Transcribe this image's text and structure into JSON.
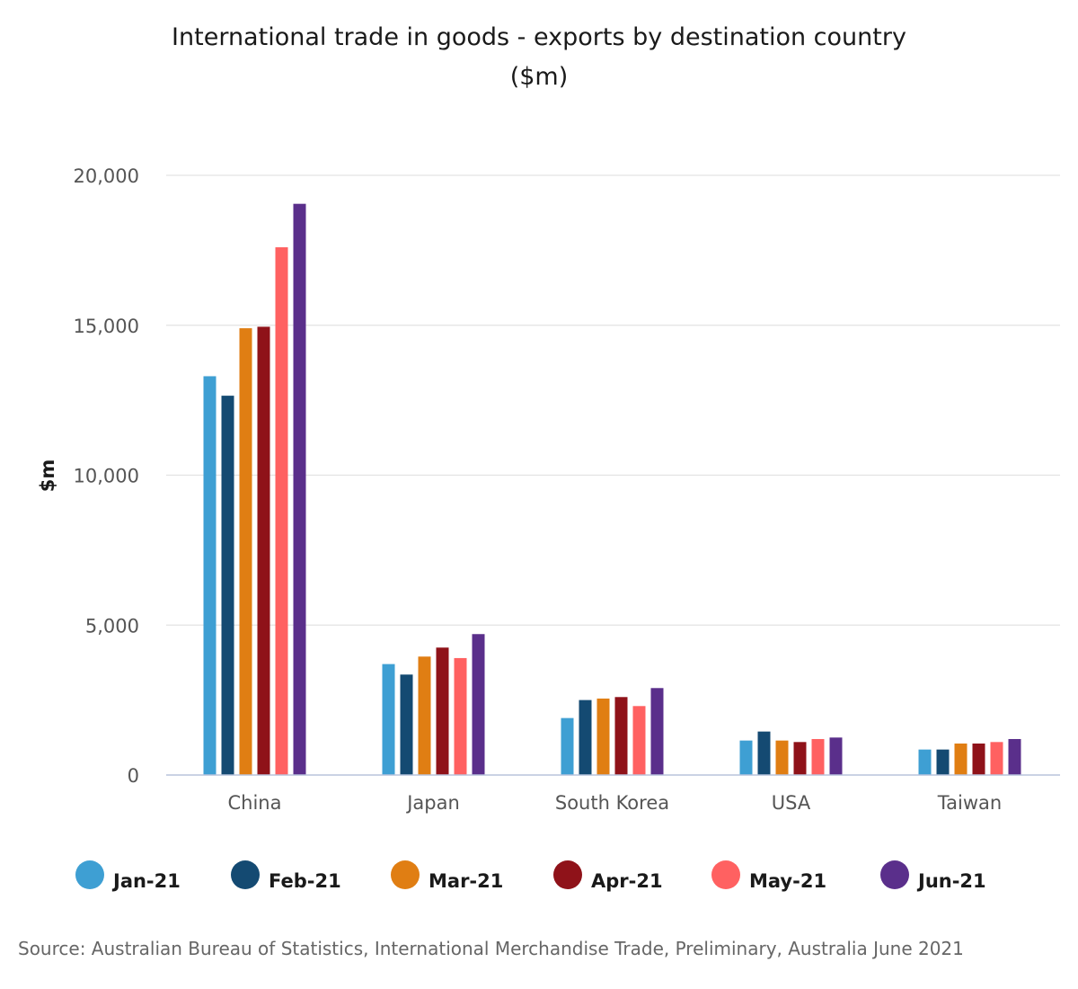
{
  "chart_data": {
    "type": "bar",
    "title": "International trade in goods - exports by destination country",
    "subtitle": "($m)",
    "xlabel": "",
    "ylabel": "$m",
    "ylim": [
      0,
      20000
    ],
    "yticks": [
      0,
      5000,
      10000,
      15000,
      20000
    ],
    "ytick_labels": [
      "0",
      "5,000",
      "10,000",
      "15,000",
      "20,000"
    ],
    "grid": true,
    "legend_position": "bottom",
    "categories": [
      "China",
      "Japan",
      "South Korea",
      "USA",
      "Taiwan"
    ],
    "series": [
      {
        "name": "Jan-21",
        "color": "#3e9fd3",
        "values": [
          13300,
          3700,
          1900,
          1150,
          850
        ]
      },
      {
        "name": "Feb-21",
        "color": "#144a72",
        "values": [
          12650,
          3350,
          2500,
          1450,
          850
        ]
      },
      {
        "name": "Mar-21",
        "color": "#e07e13",
        "values": [
          14900,
          3950,
          2550,
          1150,
          1050
        ]
      },
      {
        "name": "Apr-21",
        "color": "#8f1219",
        "values": [
          14950,
          4250,
          2600,
          1100,
          1050
        ]
      },
      {
        "name": "May-21",
        "color": "#ff6161",
        "values": [
          17600,
          3900,
          2300,
          1200,
          1100
        ]
      },
      {
        "name": "Jun-21",
        "color": "#5a2f8b",
        "values": [
          19050,
          4700,
          2900,
          1250,
          1200
        ]
      }
    ],
    "source": "Source: Australian Bureau of Statistics, International Merchandise Trade, Preliminary, Australia June 2021"
  }
}
